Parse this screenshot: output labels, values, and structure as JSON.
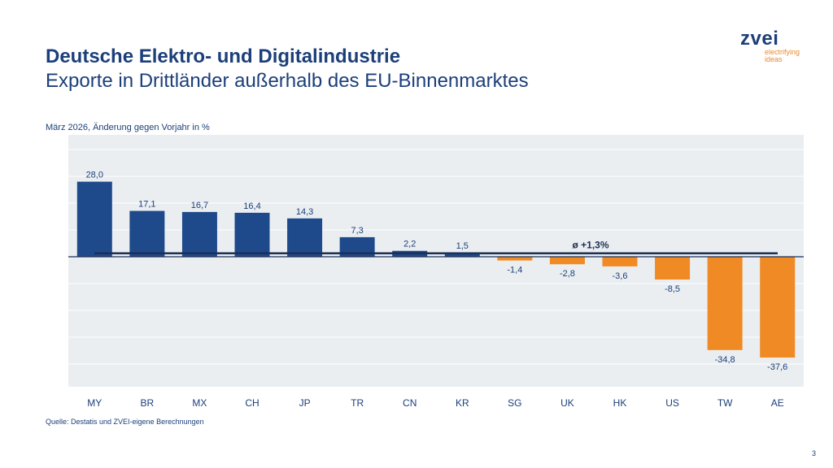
{
  "slide": {
    "title": "Deutsche Elektro- und Digitalindustrie",
    "subtitle": "Exporte in Drittländer außerhalb des EU-Binnenmarktes",
    "caption": "März 2026, Änderung gegen Vorjahr in %",
    "source": "Quelle: Destatis und ZVEI-eigene Berechnungen",
    "page_number": "3"
  },
  "logo": {
    "word": "zvei",
    "tagline_1": "electrifying",
    "tagline_2": "ideas"
  },
  "colors": {
    "primary": "#1c3f7a",
    "positive_bar": "#1e4a8c",
    "negative_bar": "#f08a24",
    "plot_background": "#eaeef1",
    "average_line": "#1c2f55"
  },
  "chart_data": {
    "type": "bar",
    "categories": [
      "MY",
      "BR",
      "MX",
      "CH",
      "JP",
      "TR",
      "CN",
      "KR",
      "SG",
      "UK",
      "HK",
      "US",
      "TW",
      "AE"
    ],
    "values": [
      28.0,
      17.1,
      16.7,
      16.4,
      14.3,
      7.3,
      2.2,
      1.5,
      -1.4,
      -2.8,
      -3.6,
      -8.5,
      -34.8,
      -37.6
    ],
    "data_labels": [
      "28,0",
      "17,1",
      "16,7",
      "16,4",
      "14,3",
      "7,3",
      "2,2",
      "1,5",
      "-1,4",
      "-2,8",
      "-3,6",
      "-8,5",
      "-34,8",
      "-37,6"
    ],
    "average": 1.3,
    "average_label": "ø +1,3%",
    "ylim": [
      -50,
      45
    ],
    "grid": true,
    "legend": "none",
    "title": "",
    "xlabel": "",
    "ylabel": ""
  }
}
